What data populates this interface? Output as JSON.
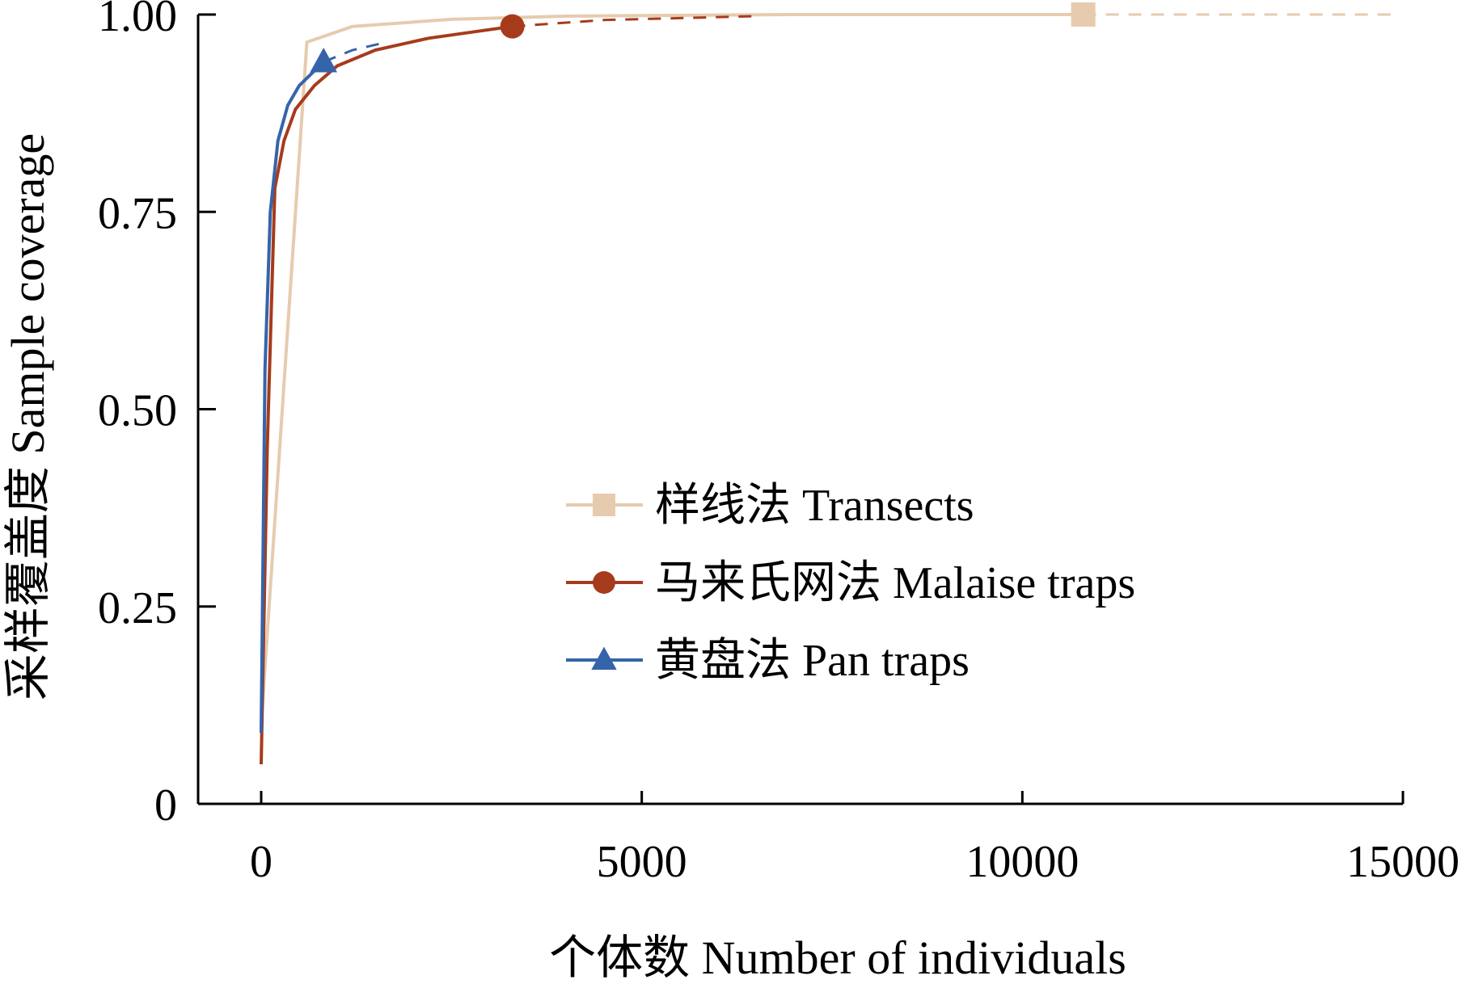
{
  "chart_data": {
    "type": "line",
    "xlabel": "个体数 Number of individuals",
    "ylabel": "采样覆盖度 Sample coverage",
    "xlim": [
      -800,
      15000
    ],
    "ylim": [
      0,
      1.0
    ],
    "xticks": [
      0,
      5000,
      10000,
      15000
    ],
    "xtick_labels": [
      "0",
      "5000",
      "10000",
      "15000"
    ],
    "yticks": [
      0,
      0.25,
      0.5,
      0.75,
      1.0
    ],
    "ytick_labels": [
      "0",
      "0.25",
      "0.50",
      "0.75",
      "1.00"
    ],
    "grid": false,
    "legend_position": "center-right",
    "series": [
      {
        "name": "样线法 Transects",
        "color": "#e6cbae",
        "marker": "square",
        "interpolated": [
          [
            0,
            0.1
          ],
          [
            600,
            0.965
          ],
          [
            1200,
            0.985
          ],
          [
            2500,
            0.994
          ],
          [
            4000,
            0.998
          ],
          [
            7000,
            1.0
          ],
          [
            10800,
            1.0
          ]
        ],
        "extrapolated": [
          [
            10800,
            1.0
          ],
          [
            14900,
            1.0
          ]
        ],
        "observed": [
          10800,
          1.0
        ]
      },
      {
        "name": "马来氏网法 Malaise traps",
        "color": "#a63b1c",
        "marker": "circle",
        "interpolated": [
          [
            0,
            0.05
          ],
          [
            80,
            0.45
          ],
          [
            180,
            0.78
          ],
          [
            300,
            0.84
          ],
          [
            450,
            0.88
          ],
          [
            700,
            0.91
          ],
          [
            1000,
            0.935
          ],
          [
            1500,
            0.955
          ],
          [
            2200,
            0.97
          ],
          [
            3300,
            0.985
          ]
        ],
        "extrapolated": [
          [
            3300,
            0.985
          ],
          [
            4500,
            0.993
          ],
          [
            6500,
            0.998
          ]
        ],
        "observed": [
          3300,
          0.985
        ]
      },
      {
        "name": "黄盘法 Pan traps",
        "color": "#3664aa",
        "marker": "triangle",
        "interpolated": [
          [
            0,
            0.09
          ],
          [
            50,
            0.55
          ],
          [
            120,
            0.75
          ],
          [
            220,
            0.84
          ],
          [
            350,
            0.885
          ],
          [
            500,
            0.91
          ],
          [
            820,
            0.94
          ]
        ],
        "extrapolated": [
          [
            820,
            0.94
          ],
          [
            1200,
            0.955
          ],
          [
            1650,
            0.965
          ]
        ],
        "observed": [
          820,
          0.94
        ]
      }
    ]
  }
}
